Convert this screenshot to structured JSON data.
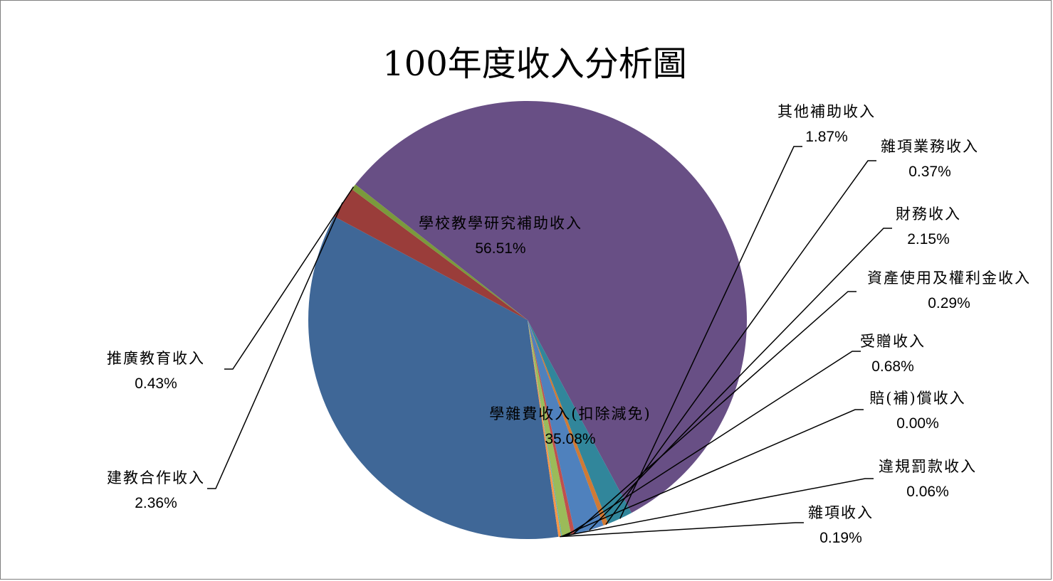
{
  "chart_data": {
    "type": "pie",
    "title": "100年度收入分析圖",
    "slices": [
      {
        "name": "學雜費收入(扣除減免)",
        "value": 35.08,
        "label": "35.08%",
        "color": "#3f6797"
      },
      {
        "name": "建教合作收入",
        "value": 2.36,
        "label": "2.36%",
        "color": "#9a3d3a"
      },
      {
        "name": "推廣教育收入",
        "value": 0.43,
        "label": "0.43%",
        "color": "#7a9a3c"
      },
      {
        "name": "學校教學研究補助收入",
        "value": 56.51,
        "label": "56.51%",
        "color": "#684f85"
      },
      {
        "name": "其他補助收入",
        "value": 1.87,
        "label": "1.87%",
        "color": "#31869b"
      },
      {
        "name": "雜項業務收入",
        "value": 0.37,
        "label": "0.37%",
        "color": "#d07a34"
      },
      {
        "name": "財務收入",
        "value": 2.15,
        "label": "2.15%",
        "color": "#4f81bd"
      },
      {
        "name": "資產使用及權利金收入",
        "value": 0.29,
        "label": "0.29%",
        "color": "#c0504d"
      },
      {
        "name": "受贈收入",
        "value": 0.68,
        "label": "0.68%",
        "color": "#9bbb59"
      },
      {
        "name": "賠(補)償收入",
        "value": 0.0,
        "label": "0.00%",
        "color": "#8064a2"
      },
      {
        "name": "違規罰款收入",
        "value": 0.06,
        "label": "0.06%",
        "color": "#4bacc6"
      },
      {
        "name": "雜項收入",
        "value": 0.19,
        "label": "0.19%",
        "color": "#f79646"
      }
    ]
  }
}
